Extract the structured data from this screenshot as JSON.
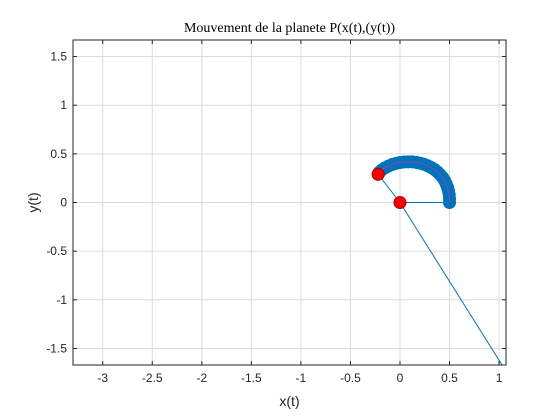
{
  "chart_data": {
    "type": "line",
    "title": "Mouvement de la planete P(x(t),(y(t))",
    "xlabel": "x(t)",
    "ylabel": "y(t)",
    "xlim": [
      -3.3,
      1.07
    ],
    "ylim": [
      -1.67,
      1.67
    ],
    "xticks": [
      -3,
      -2.5,
      -2,
      -1.5,
      -1,
      -0.5,
      0,
      0.5,
      1
    ],
    "xtick_labels": [
      "-3",
      "-2.5",
      "-2",
      "-1.5",
      "-1",
      "-0.5",
      "0",
      "0.5",
      "1"
    ],
    "yticks": [
      1.5,
      1,
      0.5,
      0,
      -0.5,
      -1,
      -1.5
    ],
    "ytick_labels": [
      "1.5",
      "1",
      "0.5",
      "0",
      "-0.5",
      "-1",
      "-1.5"
    ],
    "grid": true,
    "colors": {
      "trajectory": "#0072bd",
      "marker": "#ff0000",
      "axes": "#262626",
      "grid": "#dcdcdc"
    },
    "series": [
      {
        "kind": "trajectory-markers",
        "x": [
          0.5,
          0.5,
          0.497,
          0.49,
          0.48,
          0.466,
          0.45,
          0.43,
          0.405,
          0.378,
          0.348,
          0.315,
          0.28,
          0.242,
          0.204,
          0.164,
          0.123,
          0.082,
          0.041,
          0.0,
          -0.04,
          -0.08,
          -0.118,
          -0.154,
          -0.187,
          -0.21,
          -0.22
        ],
        "y": [
          0.0,
          0.04,
          0.08,
          0.118,
          0.156,
          0.192,
          0.226,
          0.258,
          0.288,
          0.315,
          0.339,
          0.36,
          0.378,
          0.393,
          0.404,
          0.412,
          0.417,
          0.418,
          0.416,
          0.411,
          0.402,
          0.39,
          0.374,
          0.355,
          0.332,
          0.31,
          0.29
        ]
      },
      {
        "kind": "radius-line",
        "x": [
          0.5,
          0
        ],
        "y": [
          0,
          0
        ]
      },
      {
        "kind": "extended-line",
        "x": [
          -0.22,
          0,
          1.03
        ],
        "y": [
          0.29,
          0,
          -1.67
        ]
      },
      {
        "kind": "highlight-points",
        "x": [
          -0.22,
          0
        ],
        "y": [
          0.29,
          0
        ]
      }
    ]
  }
}
